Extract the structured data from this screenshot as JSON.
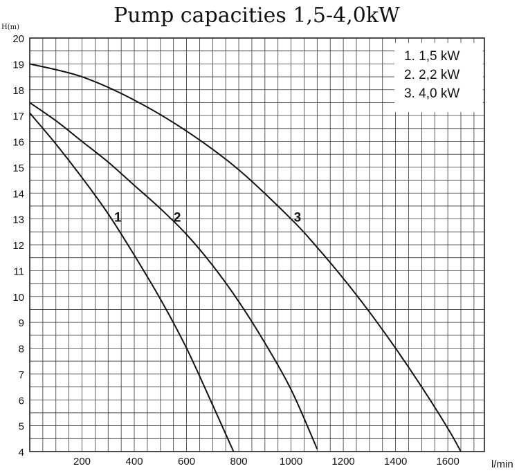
{
  "chart_data": {
    "type": "line",
    "title": "Pump capacities  1,5-4,0kW",
    "ylabel": "H(m)",
    "xlabel": "l/min",
    "xlim": [
      0,
      1740
    ],
    "ylim": [
      4,
      20
    ],
    "x_ticks": [
      200,
      400,
      600,
      800,
      1000,
      1200,
      1400,
      1600
    ],
    "y_ticks": [
      4,
      5,
      6,
      7,
      8,
      9,
      10,
      11,
      12,
      13,
      14,
      15,
      16,
      17,
      18,
      19,
      20
    ],
    "grid": true,
    "legend_position": "top-right",
    "legend": [
      "1. 1,5 kW",
      "2. 2,2 kW",
      "3. 4,0 kW"
    ],
    "series": [
      {
        "label": "1",
        "x": [
          0,
          100,
          200,
          300,
          400,
          500,
          600,
          700,
          780
        ],
        "y": [
          17.1,
          15.9,
          14.6,
          13.2,
          11.6,
          9.9,
          8.0,
          5.8,
          4.0
        ]
      },
      {
        "label": "2",
        "x": [
          0,
          100,
          200,
          300,
          400,
          500,
          600,
          700,
          800,
          900,
          1000,
          1100
        ],
        "y": [
          17.5,
          16.8,
          16.0,
          15.2,
          14.3,
          13.4,
          12.4,
          11.2,
          9.8,
          8.2,
          6.4,
          4.1
        ]
      },
      {
        "label": "3",
        "x": [
          0,
          200,
          400,
          600,
          800,
          1000,
          1100,
          1200,
          1300,
          1400,
          1500,
          1600,
          1650
        ],
        "y": [
          19.0,
          18.5,
          17.6,
          16.4,
          14.9,
          13.0,
          11.9,
          10.7,
          9.4,
          8.0,
          6.5,
          4.9,
          4.0
        ]
      }
    ]
  }
}
